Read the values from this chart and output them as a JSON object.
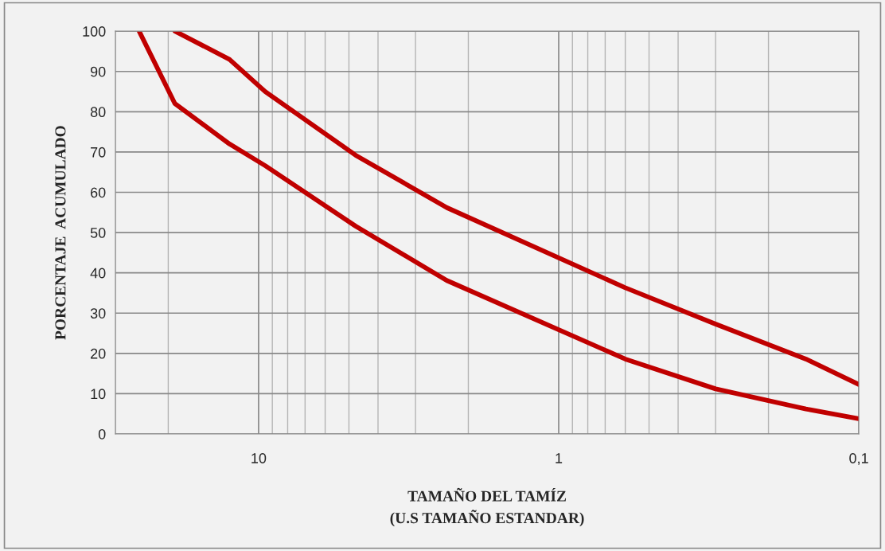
{
  "chart_data": {
    "type": "line",
    "xlabel": "TAMAÑO DEL TAMÍZ\n(U.S TAMAÑO ESTANDAR)",
    "ylabel": "PORCENTAJE  ACUMULADO",
    "log": "x",
    "xlim": [
      30,
      0.1
    ],
    "xticks": [
      10,
      1,
      {
        "value": 0.1,
        "label": "0,1"
      }
    ],
    "ylim": [
      0,
      100
    ],
    "yticks": [
      0,
      10,
      20,
      30,
      40,
      50,
      60,
      70,
      80,
      90,
      100
    ],
    "grid": true,
    "legend": false,
    "marker": "none",
    "line_style": "solid",
    "series": [
      {
        "color": "#c00000",
        "x": [
          19,
          12.5,
          9.5,
          4.75,
          2.36,
          0.6,
          0.3,
          0.15,
          0.1
        ],
        "values": [
          100,
          93,
          85,
          69.2,
          56.2,
          36.3,
          27.3,
          18.6,
          12.3
        ]
      },
      {
        "color": "#c00000",
        "x": [
          25,
          19,
          12.5,
          9.5,
          4.75,
          2.36,
          0.6,
          0.3,
          0.15,
          0.1
        ],
        "values": [
          100,
          82,
          72,
          66.6,
          51.6,
          38.1,
          18.6,
          11.2,
          6.2,
          3.8
        ]
      }
    ]
  }
}
